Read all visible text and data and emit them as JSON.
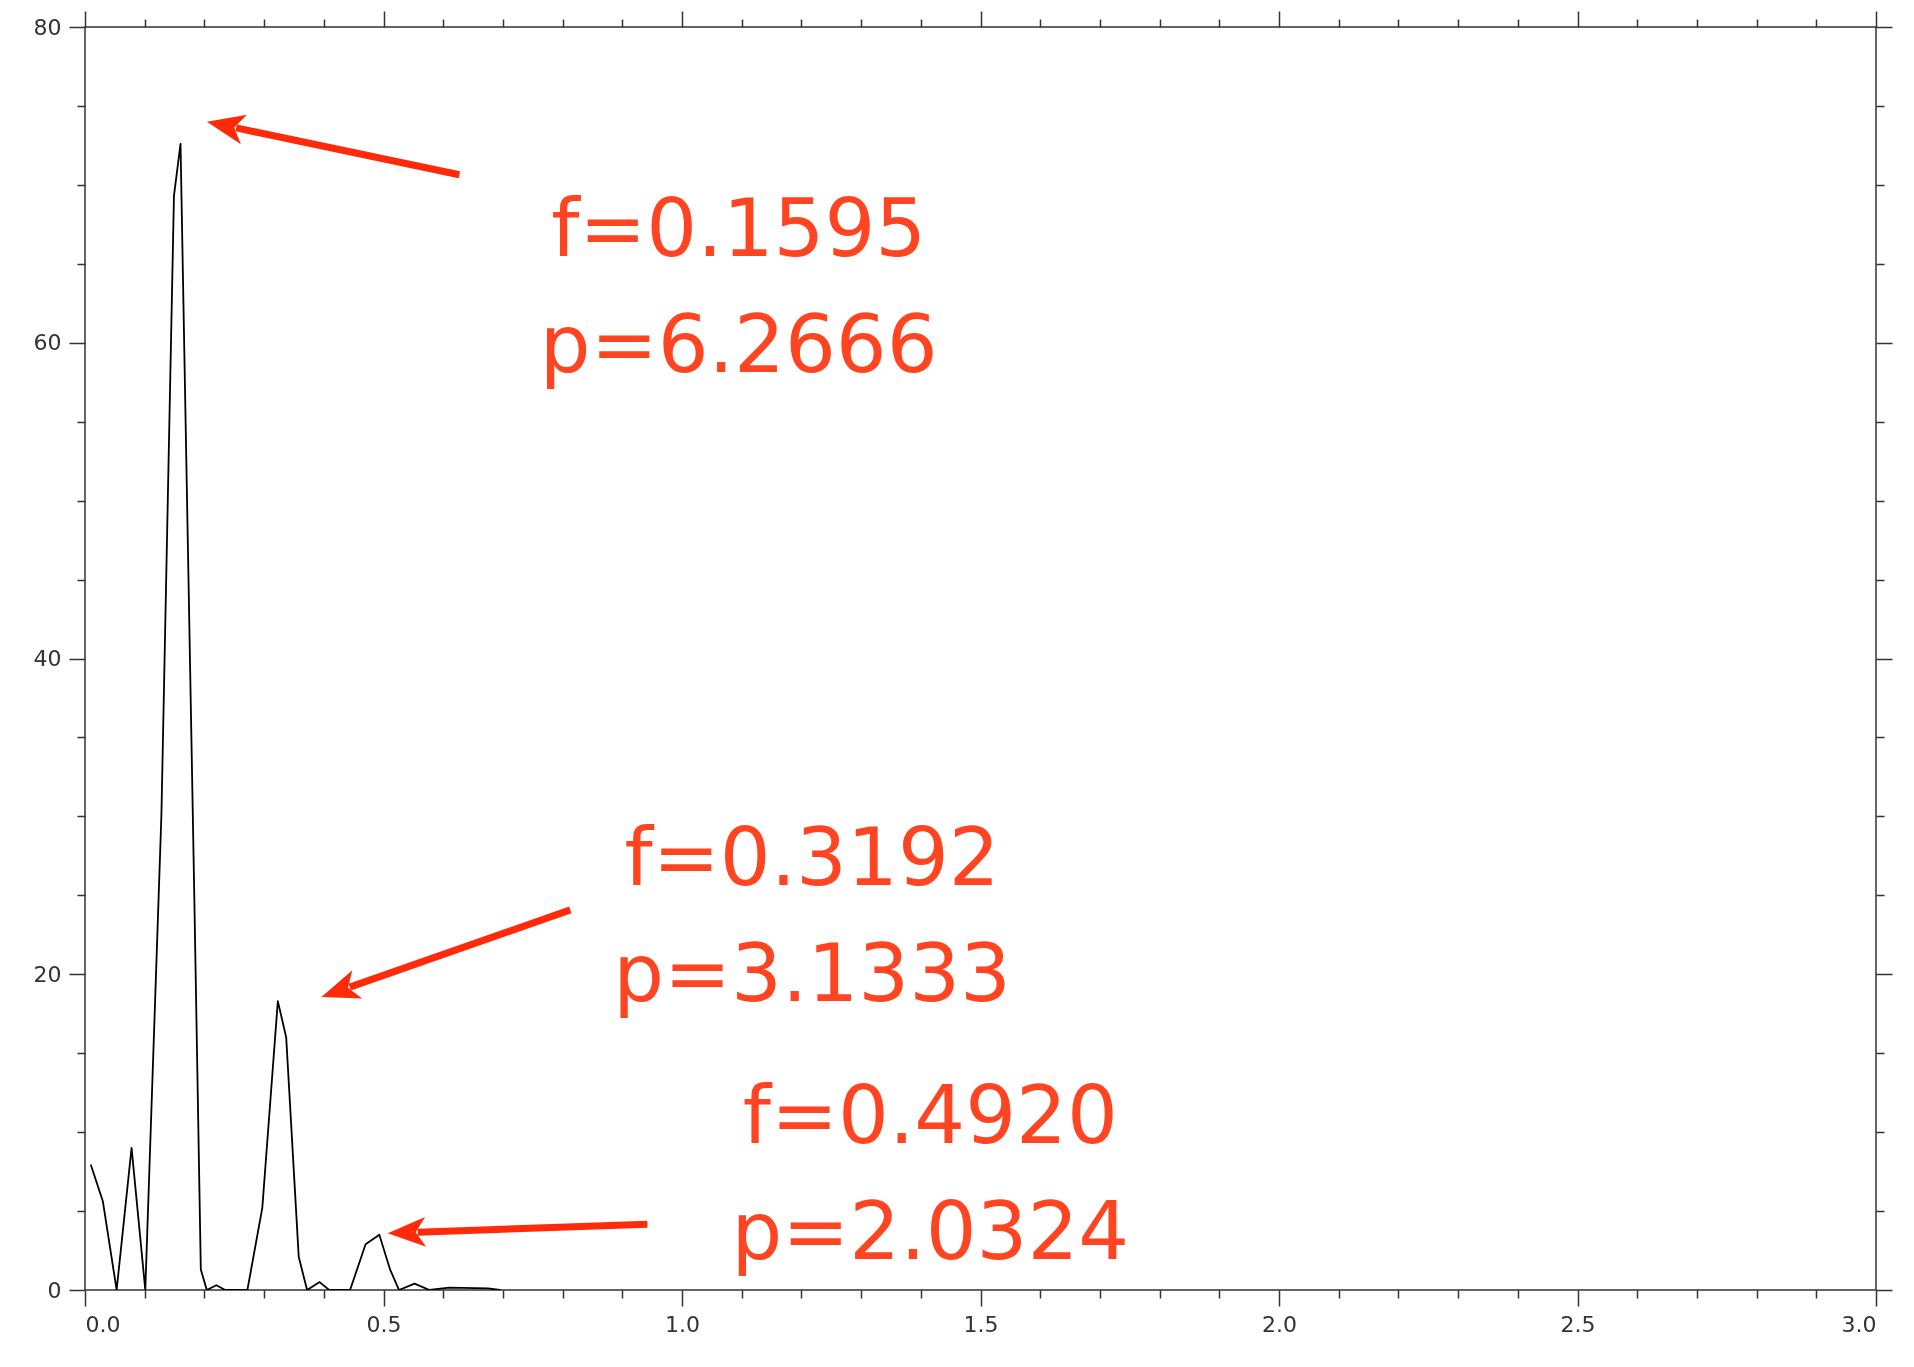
{
  "chart_data": {
    "type": "line",
    "x": [
      0.01,
      0.03,
      0.053,
      0.078,
      0.101,
      0.128,
      0.149,
      0.16,
      0.183,
      0.194,
      0.204,
      0.22,
      0.235,
      0.272,
      0.297,
      0.323,
      0.337,
      0.358,
      0.372,
      0.393,
      0.409,
      0.444,
      0.47,
      0.493,
      0.511,
      0.526,
      0.552,
      0.577,
      0.61,
      0.675,
      0.695
    ],
    "series": [
      {
        "color": "#000000",
        "values": [
          7.9,
          5.6,
          0,
          9.0,
          0,
          30.1,
          69.3,
          72.6,
          25.1,
          1.3,
          0,
          0.3,
          0,
          0,
          5.2,
          18.3,
          16,
          2.1,
          0,
          0.5,
          0,
          0,
          2.9,
          3.5,
          1.3,
          0,
          0.4,
          0,
          0.15,
          0.1,
          0
        ]
      }
    ],
    "xlim": [
      0,
      3
    ],
    "xticks": [
      {
        "value": 0,
        "label": "0.0"
      },
      {
        "value": 0.1,
        "label": null
      },
      {
        "value": 0.2,
        "label": null
      },
      {
        "value": 0.3,
        "label": null
      },
      {
        "value": 0.4,
        "label": null
      },
      {
        "value": 0.5,
        "label": "0.5"
      },
      {
        "value": 0.6,
        "label": null
      },
      {
        "value": 0.7,
        "label": null
      },
      {
        "value": 0.8,
        "label": null
      },
      {
        "value": 0.9,
        "label": null
      },
      {
        "value": 1,
        "label": "1.0"
      },
      {
        "value": 1.1,
        "label": null
      },
      {
        "value": 1.2,
        "label": null
      },
      {
        "value": 1.3,
        "label": null
      },
      {
        "value": 1.4,
        "label": null
      },
      {
        "value": 1.5,
        "label": "1.5"
      },
      {
        "value": 1.6,
        "label": null
      },
      {
        "value": 1.7,
        "label": null
      },
      {
        "value": 1.8,
        "label": null
      },
      {
        "value": 1.9,
        "label": null
      },
      {
        "value": 2,
        "label": "2.0"
      },
      {
        "value": 2.1,
        "label": null
      },
      {
        "value": 2.2,
        "label": null
      },
      {
        "value": 2.3,
        "label": null
      },
      {
        "value": 2.4,
        "label": null
      },
      {
        "value": 2.5,
        "label": "2.5"
      },
      {
        "value": 2.6,
        "label": null
      },
      {
        "value": 2.7,
        "label": null
      },
      {
        "value": 2.8,
        "label": null
      },
      {
        "value": 2.9,
        "label": null
      },
      {
        "value": 3,
        "label": "3.0"
      }
    ],
    "ylim": [
      0,
      80
    ],
    "yticks": [
      0,
      {
        "value": 5,
        "label": null
      },
      {
        "value": 10,
        "label": null
      },
      {
        "value": 15,
        "label": null
      },
      20,
      {
        "value": 25,
        "label": null
      },
      {
        "value": 30,
        "label": null
      },
      {
        "value": 35,
        "label": null
      },
      40,
      {
        "value": 45,
        "label": null
      },
      {
        "value": 50,
        "label": null
      },
      {
        "value": 55,
        "label": null
      },
      60,
      {
        "value": 65,
        "label": null
      },
      {
        "value": 70,
        "label": null
      },
      {
        "value": 75,
        "label": null
      },
      80
    ],
    "grid": false,
    "marker": "none",
    "line_style": "solid",
    "annotations": [
      "f=0.1595\np=6.2666",
      "f=0.3192\np=3.1333",
      "f=0.4920\np=2.0324"
    ]
  }
}
